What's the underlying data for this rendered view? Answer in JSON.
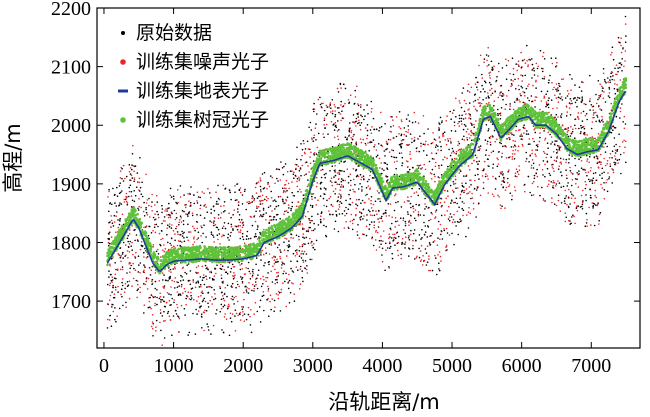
{
  "chart_data": {
    "type": "scatter",
    "title": "",
    "xlabel": "沿轨距离/m",
    "ylabel": "高程/m",
    "xlim": [
      -100,
      7700
    ],
    "ylim": [
      1620,
      2200
    ],
    "xticks": [
      0,
      1000,
      2000,
      3000,
      4000,
      5000,
      6000,
      7000
    ],
    "yticks": [
      1700,
      1800,
      1900,
      2000,
      2100,
      2200
    ],
    "grid": false,
    "legend_position": "top-left",
    "surface_profile": {
      "x": [
        50,
        150,
        300,
        420,
        500,
        600,
        700,
        800,
        900,
        1000,
        1200,
        1400,
        1600,
        1800,
        2000,
        2200,
        2300,
        2500,
        2700,
        2850,
        3000,
        3100,
        3300,
        3500,
        3700,
        3850,
        3950,
        4050,
        4150,
        4300,
        4500,
        4650,
        4750,
        4900,
        5100,
        5300,
        5450,
        5550,
        5700,
        5800,
        5950,
        6100,
        6200,
        6350,
        6500,
        6650,
        6800,
        6950,
        7100,
        7250,
        7400,
        7500
      ],
      "y": [
        1765,
        1785,
        1815,
        1840,
        1825,
        1795,
        1765,
        1750,
        1762,
        1768,
        1770,
        1772,
        1770,
        1770,
        1772,
        1778,
        1800,
        1810,
        1825,
        1845,
        1905,
        1935,
        1940,
        1948,
        1935,
        1925,
        1900,
        1872,
        1893,
        1895,
        1903,
        1880,
        1865,
        1900,
        1930,
        1950,
        2010,
        2015,
        1978,
        1990,
        2010,
        2015,
        2000,
        2000,
        1985,
        1960,
        1950,
        1955,
        1958,
        1990,
        2040,
        2060
      ]
    },
    "series": [
      {
        "name": "原始数据",
        "color": "#000000",
        "marker": "dot",
        "n_points": 2200,
        "spread": [
          100,
          130
        ]
      },
      {
        "name": "训练集噪声光子",
        "color": "#e8262a",
        "marker": "dot",
        "n_points": 1900,
        "spread": [
          100,
          130
        ]
      },
      {
        "name": "训练集地表光子",
        "color": "#1f3a9e",
        "marker": "line",
        "spread": [
          0,
          0
        ]
      },
      {
        "name": "训练集树冠光子",
        "color": "#5fc23a",
        "marker": "dot",
        "n_points": 3200,
        "spread": [
          -4,
          22
        ]
      }
    ]
  }
}
